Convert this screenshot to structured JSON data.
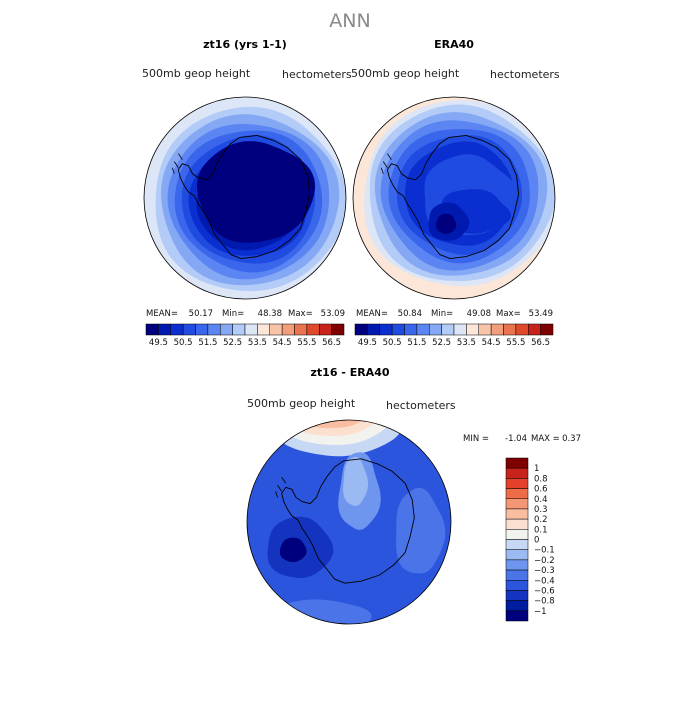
{
  "figure_title": "ANN",
  "chart_data": [
    {
      "type": "heatmap",
      "projection": "south-polar-stereographic",
      "title": "zt16 (yrs 1-1)",
      "subtitle_left": "500mb geop height",
      "subtitle_right": "hectometers",
      "stats": {
        "mean_label": "MEAN=",
        "mean": "50.17",
        "min_label": "Min=",
        "min": "48.38",
        "max_label": "Max=",
        "max": "53.09"
      },
      "colorbar_labels": [
        "49.5",
        "50.5",
        "51.5",
        "52.5",
        "53.5",
        "54.5",
        "55.5",
        "56.5"
      ],
      "field_levels": [
        49.0,
        49.5,
        50.0,
        50.5,
        51.0,
        51.5,
        52.0,
        52.5
      ],
      "field_min": 48.38,
      "field_max": 53.09
    },
    {
      "type": "heatmap",
      "projection": "south-polar-stereographic",
      "title": "ERA40",
      "subtitle_left": "500mb geop height",
      "subtitle_right": "hectometers",
      "stats": {
        "mean_label": "MEAN=",
        "mean": "50.84",
        "min_label": "Min=",
        "min": "49.08",
        "max_label": "Max=",
        "max": "53.49"
      },
      "colorbar_labels": [
        "49.5",
        "50.5",
        "51.5",
        "52.5",
        "53.5",
        "54.5",
        "55.5",
        "56.5"
      ],
      "field_levels": [
        49.5,
        50.0,
        50.5,
        51.0,
        51.5,
        52.0,
        52.5,
        53.0
      ],
      "field_min": 49.08,
      "field_max": 53.49
    },
    {
      "type": "heatmap",
      "projection": "south-polar-stereographic",
      "title": "zt16 - ERA40",
      "subtitle_left": "500mb geop height",
      "subtitle_right": "hectometers",
      "stats": {
        "min_label": "MIN =",
        "min": "-1.04",
        "max_label": "MAX =",
        "max": "0.37"
      },
      "colorbar_labels": [
        "1",
        "0.8",
        "0.6",
        "0.4",
        "0.3",
        "0.2",
        "0.1",
        "0",
        "−0.1",
        "−0.2",
        "−0.3",
        "−0.4",
        "−0.6",
        "−0.8",
        "−1"
      ],
      "field_min": -1.04,
      "field_max": 0.37
    }
  ],
  "colors": {
    "abs_scale": [
      "#00007f",
      "#001ab0",
      "#0a2ed0",
      "#1f4be0",
      "#3a66ec",
      "#5b85f2",
      "#85a8f5",
      "#b3cbf7",
      "#dde6f6",
      "#fbe6d8",
      "#f8c4a8",
      "#f29e7a",
      "#eb7450",
      "#df4a2c",
      "#c8231a",
      "#7f0000"
    ],
    "diff_scale": [
      "#7f0000",
      "#c8231a",
      "#e4402a",
      "#ee6d48",
      "#f59674",
      "#f9bea2",
      "#fbe0cf",
      "#f2f2ef",
      "#c6d8f4",
      "#9bb9f3",
      "#6f96ef",
      "#4a74e8",
      "#2b55dc",
      "#1434c0",
      "#001d9f",
      "#00007f"
    ],
    "coastline": "#000000"
  }
}
